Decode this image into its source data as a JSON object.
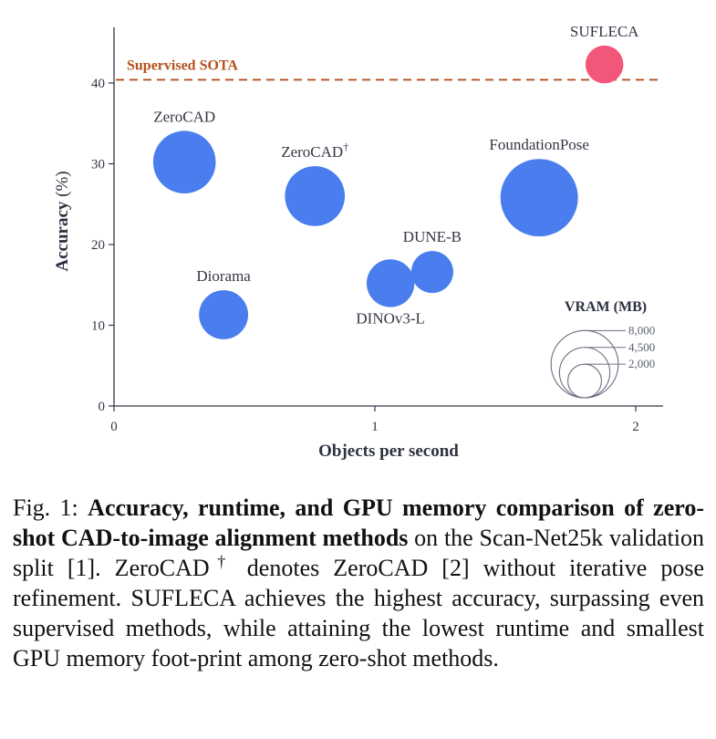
{
  "chart_data": {
    "type": "scatter",
    "xlabel": "Objects per second",
    "ylabel": "Accuracy (%)",
    "xlim": [
      0,
      2.1
    ],
    "ylim": [
      0,
      47
    ],
    "xticks": [
      0,
      1,
      2
    ],
    "yticks": [
      0,
      10,
      20,
      30,
      40
    ],
    "grid": false,
    "points": [
      {
        "name": "ZeroCAD",
        "x": 0.27,
        "y": 30.2,
        "vram_mb": 6000,
        "color": "#4a7eef",
        "label_pos": "above"
      },
      {
        "name": "ZeroCAD",
        "sup": "†",
        "x": 0.77,
        "y": 26.0,
        "vram_mb": 5500,
        "color": "#4a7eef",
        "label_pos": "above"
      },
      {
        "name": "Diorama",
        "x": 0.42,
        "y": 11.3,
        "vram_mb": 3700,
        "color": "#4a7eef",
        "label_pos": "above"
      },
      {
        "name": "DINOv3-L",
        "x": 1.06,
        "y": 15.2,
        "vram_mb": 3500,
        "color": "#4a7eef",
        "label_pos": "below"
      },
      {
        "name": "DUNE-B",
        "x": 1.22,
        "y": 16.6,
        "vram_mb": 2700,
        "color": "#4a7eef",
        "label_pos": "above"
      },
      {
        "name": "FoundationPose",
        "x": 1.63,
        "y": 25.8,
        "vram_mb": 9200,
        "color": "#4a7eef",
        "label_pos": "above"
      },
      {
        "name": "SUFLECA",
        "x": 1.88,
        "y": 42.3,
        "vram_mb": 2200,
        "color": "#f2577a",
        "label_pos": "above"
      }
    ],
    "reference_line": {
      "label": "Supervised SOTA",
      "y": 40.4,
      "color": "#b5501c",
      "style": "dashed"
    },
    "size_legend": {
      "title": "VRAM",
      "title_unit": "(MB)",
      "entries": [
        {
          "label": "8,000",
          "value": 8000
        },
        {
          "label": "4,500",
          "value": 4500
        },
        {
          "label": "2,000",
          "value": 2000
        }
      ],
      "placement": "bottom-right"
    }
  },
  "caption": {
    "prefix": "Fig. 1: ",
    "bold": "Accuracy, runtime, and GPU memory comparison of zero-shot CAD-to-image alignment methods",
    "rest": " on the Scan-Net25k validation split [1]. ZeroCAD",
    "dagger": "†",
    "rest2": " denotes ZeroCAD [2] without iterative pose refinement. SUFLECA achieves the highest accuracy, surpassing even supervised methods, while attaining the lowest runtime and smallest GPU memory foot-print among zero-shot methods."
  }
}
